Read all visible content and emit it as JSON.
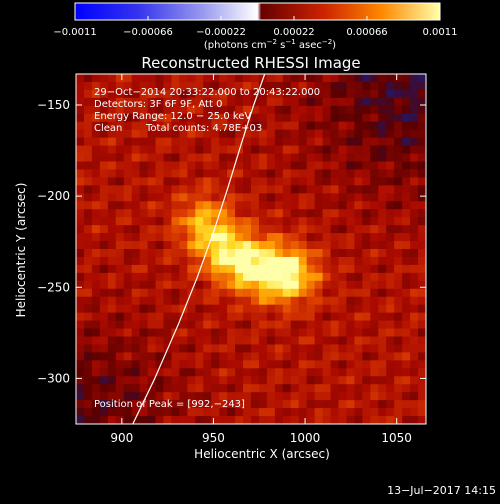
{
  "chart_data": {
    "type": "heatmap",
    "title": "Reconstructed RHESSI Image",
    "xlabel": "Heliocentric X (arcsec)",
    "ylabel": "Heliocentric Y (arcsec)",
    "xlim": [
      875,
      1066
    ],
    "ylim": [
      -325,
      -133
    ],
    "xticks": [
      900,
      950,
      1000,
      1050
    ],
    "yticks": [
      -150,
      -200,
      -250,
      -300
    ],
    "colorbar": {
      "range": [
        -0.0011,
        0.0011
      ],
      "ticks": [
        "−0.0011",
        "−0.00066",
        "−0.00022",
        "0.00022",
        "0.00066",
        "0.0011"
      ],
      "units": "(photons cm",
      "units_sup1": "−2",
      "units_mid1": " s",
      "units_sup2": "−1",
      "units_mid2": " asec",
      "units_sup3": "−2",
      "units_end": ")"
    },
    "annotations": {
      "line1": "29−Oct−2014 20:33:22.000 to 20:43:22.000",
      "line2": "Detectors: 3F 6F 9F, Att 0",
      "line3": "Energy Range: 12.0 − 25.0 keV",
      "line4a": "Clean",
      "line4b": "Total counts: 4.78E+03",
      "peak": "Position of Peak = [992,−243]"
    },
    "peak": [
      992,
      -243
    ],
    "limb_curve": [
      [
        906,
        -325
      ],
      [
        918,
        -300
      ],
      [
        931,
        -270
      ],
      [
        941,
        -245
      ],
      [
        950,
        -220
      ],
      [
        958,
        -195
      ],
      [
        965,
        -172
      ],
      [
        972,
        -150
      ],
      [
        978,
        -133
      ]
    ],
    "sources": [
      {
        "x": 945,
        "y": -215,
        "strength": 0.75
      },
      {
        "x": 958,
        "y": -232,
        "strength": 0.85
      },
      {
        "x": 975,
        "y": -240,
        "strength": 0.85
      },
      {
        "x": 992,
        "y": -243,
        "strength": 1.0
      }
    ],
    "grid": false
  },
  "footer": {
    "timestamp": "13−Jul−2017 14:15"
  }
}
